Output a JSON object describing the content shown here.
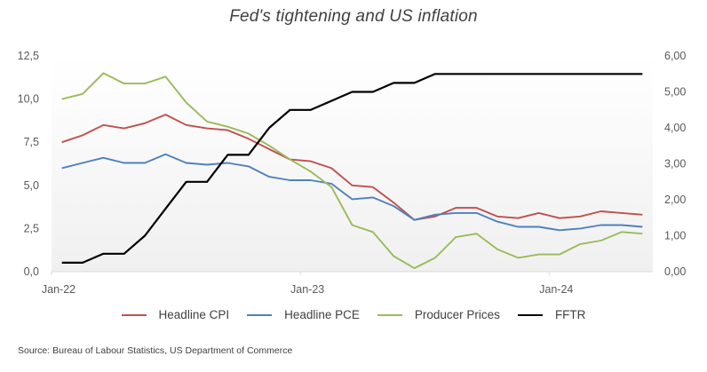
{
  "chart_data": {
    "type": "line",
    "title": "Fed's tightening and US inflation",
    "source": "Source: Bureau of Labour Statistics, US Department of Commerce",
    "x": [
      "Jan-22",
      "Feb-22",
      "Mar-22",
      "Apr-22",
      "May-22",
      "Jun-22",
      "Jul-22",
      "Aug-22",
      "Sep-22",
      "Oct-22",
      "Nov-22",
      "Dec-22",
      "Jan-23",
      "Feb-23",
      "Mar-23",
      "Apr-23",
      "May-23",
      "Jun-23",
      "Jul-23",
      "Aug-23",
      "Sep-23",
      "Oct-23",
      "Nov-23",
      "Dec-23",
      "Jan-24",
      "Feb-24",
      "Mar-24",
      "Apr-24",
      "May-24"
    ],
    "x_tick_labels": [
      "Jan-22",
      "Jan-23",
      "Jan-24"
    ],
    "x_tick_indices": [
      0,
      12,
      24
    ],
    "xlabel": "",
    "y_left": {
      "label": "",
      "range": [
        0,
        12.5
      ],
      "ticks": [
        "0,0",
        "2,5",
        "5,0",
        "7,5",
        "10,0",
        "12,5"
      ],
      "tick_values": [
        0,
        2.5,
        5,
        7.5,
        10,
        12.5
      ]
    },
    "y_right": {
      "label": "",
      "range": [
        0,
        6
      ],
      "ticks": [
        "0,00",
        "1,00",
        "2,00",
        "3,00",
        "4,00",
        "5,00",
        "6,00"
      ],
      "tick_values": [
        0,
        1,
        2,
        3,
        4,
        5,
        6
      ]
    },
    "grid": false,
    "legend_position": "bottom",
    "series": [
      {
        "name": "Headline CPI",
        "axis": "left",
        "color": "#c0504d",
        "values": [
          7.5,
          7.9,
          8.5,
          8.3,
          8.6,
          9.1,
          8.5,
          8.3,
          8.2,
          7.7,
          7.1,
          6.5,
          6.4,
          6.0,
          5.0,
          4.9,
          4.0,
          3.0,
          3.2,
          3.7,
          3.7,
          3.2,
          3.1,
          3.4,
          3.1,
          3.2,
          3.5,
          3.4,
          3.3
        ]
      },
      {
        "name": "Headline PCE",
        "axis": "left",
        "color": "#4f81bd",
        "values": [
          6.0,
          6.3,
          6.6,
          6.3,
          6.3,
          6.8,
          6.3,
          6.2,
          6.3,
          6.1,
          5.5,
          5.3,
          5.3,
          5.1,
          4.2,
          4.3,
          3.8,
          3.0,
          3.3,
          3.4,
          3.4,
          2.9,
          2.6,
          2.6,
          2.4,
          2.5,
          2.7,
          2.7,
          2.6
        ]
      },
      {
        "name": "Producer Prices",
        "axis": "left",
        "color": "#9bbb59",
        "values": [
          10.0,
          10.3,
          11.5,
          10.9,
          10.9,
          11.3,
          9.8,
          8.7,
          8.4,
          8.0,
          7.3,
          6.5,
          5.8,
          4.9,
          2.7,
          2.3,
          0.9,
          0.2,
          0.8,
          2.0,
          2.2,
          1.3,
          0.8,
          1.0,
          1.0,
          1.6,
          1.8,
          2.3,
          2.2
        ]
      },
      {
        "name": "FFTR",
        "axis": "right",
        "color": "#000000",
        "values": [
          0.25,
          0.25,
          0.5,
          0.5,
          1.0,
          1.75,
          2.5,
          2.5,
          3.25,
          3.25,
          4.0,
          4.5,
          4.5,
          4.75,
          5.0,
          5.0,
          5.25,
          5.25,
          5.5,
          5.5,
          5.5,
          5.5,
          5.5,
          5.5,
          5.5,
          5.5,
          5.5,
          5.5,
          5.5
        ]
      }
    ]
  }
}
